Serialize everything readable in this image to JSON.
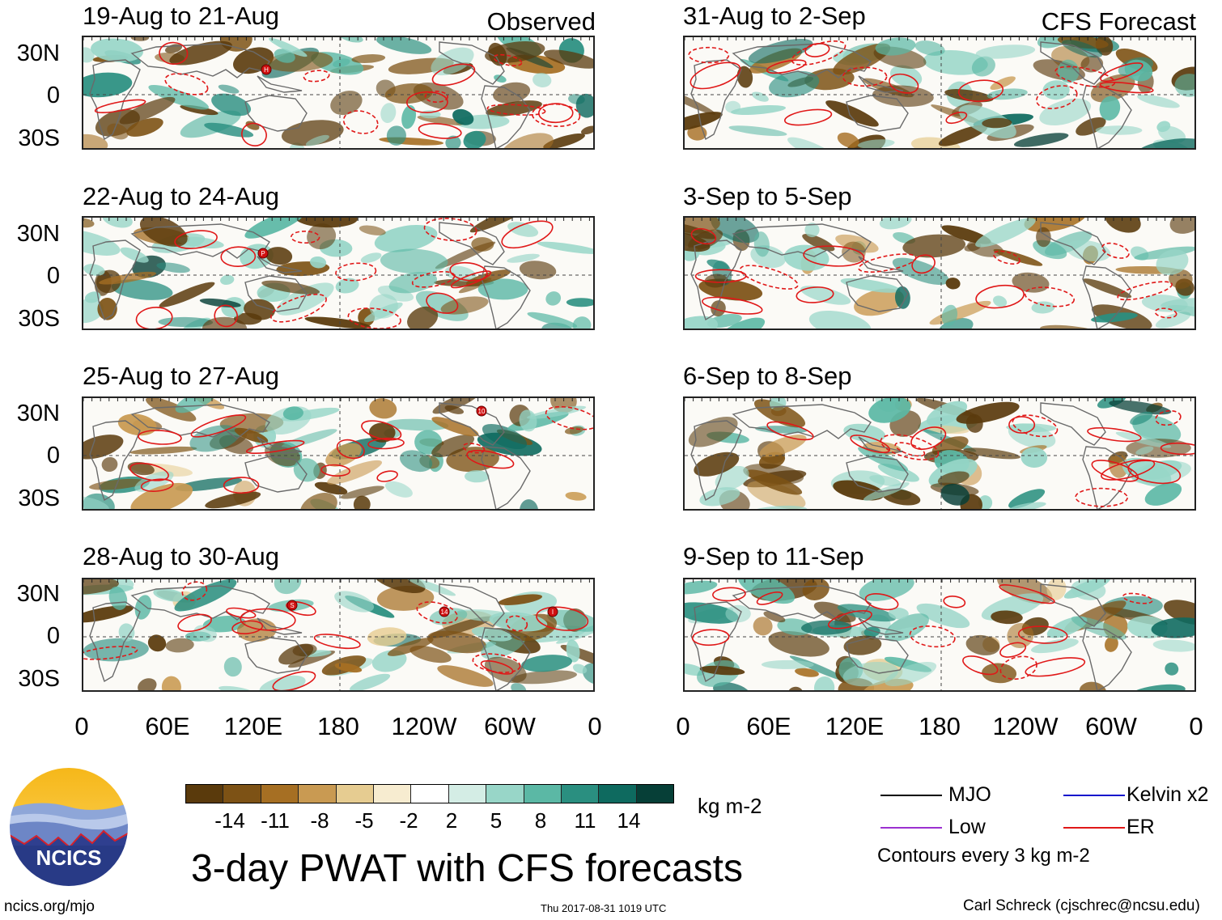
{
  "panels": [
    {
      "id": "p1",
      "title": "19-Aug to 21-Aug",
      "tag": "Observed",
      "kind": "Observed",
      "storms": [
        "H"
      ]
    },
    {
      "id": "p2",
      "title": "22-Aug to 24-Aug",
      "tag": "",
      "kind": "Observed",
      "storms": [
        "P"
      ]
    },
    {
      "id": "p3",
      "title": "25-Aug to 27-Aug",
      "tag": "",
      "kind": "Observed",
      "storms": [
        "10"
      ]
    },
    {
      "id": "p4",
      "title": "28-Aug to 30-Aug",
      "tag": "",
      "kind": "Observed",
      "storms": [
        "S",
        "14",
        "I"
      ]
    },
    {
      "id": "p5",
      "title": "31-Aug to 2-Sep",
      "tag": "CFS Forecast",
      "kind": "CFS Forecast",
      "storms": []
    },
    {
      "id": "p6",
      "title": "3-Sep to 5-Sep",
      "tag": "",
      "kind": "CFS Forecast",
      "storms": []
    },
    {
      "id": "p7",
      "title": "6-Sep to 8-Sep",
      "tag": "",
      "kind": "CFS Forecast",
      "storms": []
    },
    {
      "id": "p8",
      "title": "9-Sep to 11-Sep",
      "tag": "",
      "kind": "CFS Forecast",
      "storms": []
    }
  ],
  "lat_labels": [
    "30N",
    "0",
    "30S"
  ],
  "lon_labels": [
    "0",
    "60E",
    "120E",
    "180",
    "120W",
    "60W",
    "0"
  ],
  "colorbar": {
    "labels": [
      "-14",
      "-11",
      "-8",
      "-5",
      "-2",
      "2",
      "5",
      "8",
      "11",
      "14"
    ],
    "colors": [
      "#5a3a0c",
      "#7d5215",
      "#a66f23",
      "#c99a52",
      "#e6cc91",
      "#f7ecd0",
      "#ffffff",
      "#d4ede5",
      "#98d6c8",
      "#5bb8a5",
      "#2a8f80",
      "#0e6a5f",
      "#063f37"
    ],
    "units": "kg m-2"
  },
  "legend": {
    "items": [
      {
        "label": "MJO",
        "color": "#000000"
      },
      {
        "label": "Kelvin x2",
        "color": "#1414cc"
      },
      {
        "label": "Low",
        "color": "#9b30d0"
      },
      {
        "label": "ER",
        "color": "#e01818"
      }
    ],
    "contour_note": "Contours every 3 kg m-2"
  },
  "logo_text": "NCICS",
  "main_title": "3-day PWAT with CFS forecasts",
  "footer": {
    "left": "ncics.org/mjo",
    "center": "Thu 2017-08-31 1019 UTC",
    "right": "Carl Schreck (cjschrec@ncsu.edu)"
  }
}
